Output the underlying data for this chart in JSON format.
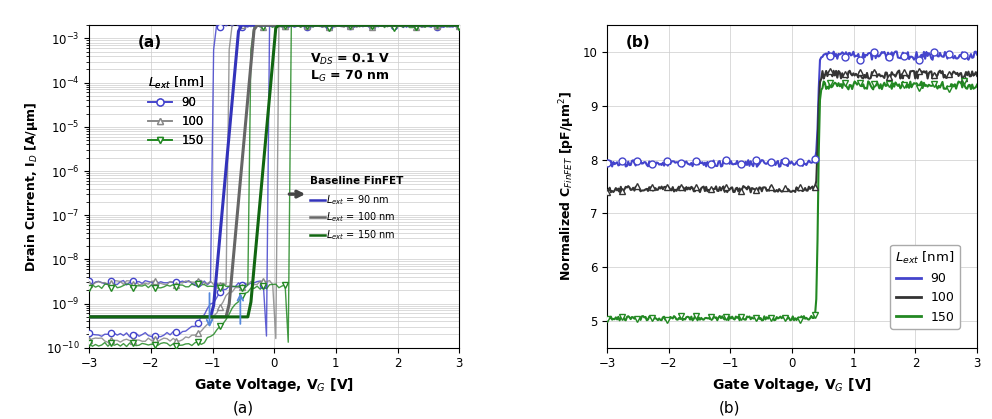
{
  "fig_width": 9.92,
  "fig_height": 4.19,
  "dpi": 100,
  "plot_a": {
    "xlabel": "Gate Voltage, V$_G$ [V]",
    "ylabel": "Drain Current, I$_D$ [A/μm]",
    "xlim": [
      -3,
      3
    ],
    "ylim": [
      1e-10,
      0.002
    ],
    "xticks": [
      -3,
      -2,
      -1,
      0,
      1,
      2,
      3
    ],
    "label": "(a)",
    "vds_text": "V$_{DS}$ = 0.1 V",
    "lg_text": "L$_G$ = 70 nm",
    "nc_colors": [
      "#4444cc",
      "#888888",
      "#228822"
    ],
    "nc_markers": [
      "o",
      "^",
      "v"
    ],
    "baseline_colors": [
      "#3333bb",
      "#666666",
      "#116611"
    ],
    "nc_vth_fwd": [
      -1.0,
      -0.75,
      -0.4
    ],
    "nc_vth_bwd": [
      -0.15,
      0.05,
      0.25
    ],
    "nc_ioff": [
      3e-09,
      3e-09,
      2e-09
    ],
    "nc_imin": [
      2e-10,
      1.5e-10,
      1e-10
    ],
    "nc_ion": [
      0.002,
      0.002,
      0.002
    ],
    "baseline_vth": [
      -1.0,
      -0.75,
      -0.4
    ],
    "baseline_ioff": [
      5e-10,
      5e-10,
      5e-10
    ],
    "baseline_ion": [
      0.002,
      0.002,
      0.002
    ]
  },
  "plot_b": {
    "xlabel": "Gate Voltage, V$_G$ [V]",
    "ylabel": "Normalized C$_{FinFET}$ [pF/μm$^2$]",
    "xlim": [
      -3,
      3
    ],
    "ylim": [
      4.5,
      10.5
    ],
    "yticks": [
      5,
      6,
      7,
      8,
      9,
      10
    ],
    "xticks": [
      -3,
      -2,
      -1,
      0,
      1,
      2,
      3
    ],
    "label": "(b)",
    "colors": [
      "#4444cc",
      "#333333",
      "#228822"
    ],
    "markers": [
      "o",
      "^",
      "v"
    ],
    "legend_entries": [
      "90",
      "100",
      "150"
    ],
    "cap_off": [
      7.93,
      7.45,
      5.05
    ],
    "cap_on": [
      9.93,
      9.58,
      9.38
    ],
    "transition_vg": 0.42
  }
}
